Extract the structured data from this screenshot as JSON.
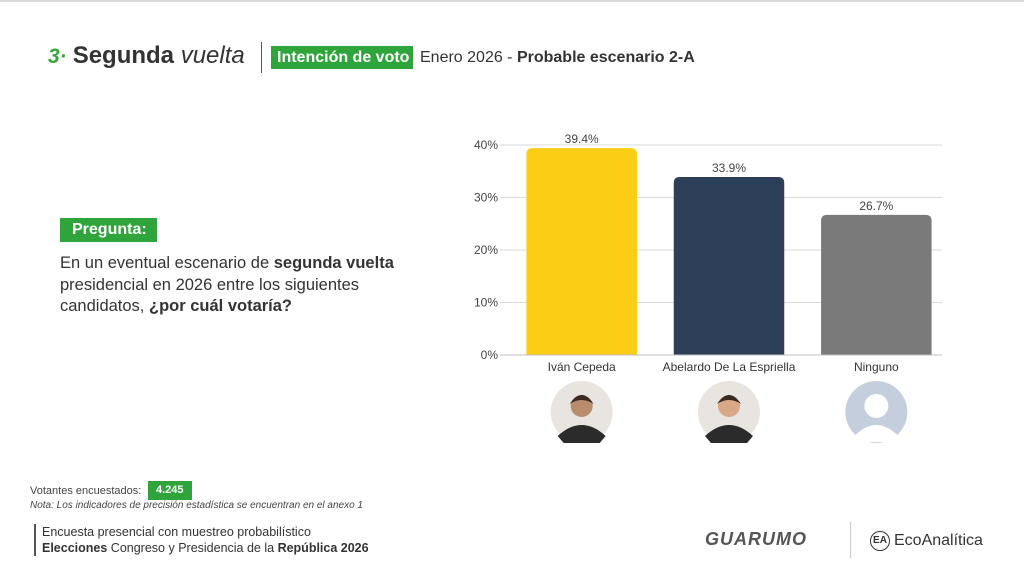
{
  "header": {
    "number": "3·",
    "title_bold": "Segunda",
    "title_italic": "vuelta",
    "tag": "Intención de voto",
    "subtitle_date": "Enero 2026 - ",
    "subtitle_scenario": "Probable escenario 2-A"
  },
  "question": {
    "label": "Pregunta:",
    "parts": [
      "En un eventual escenario de ",
      "segunda vuelta",
      " presidencial en 2026 entre los siguientes candidatos, ",
      "¿por cuál votaría?"
    ]
  },
  "sample": {
    "label": "Votantes encuestados:",
    "value": "4.245",
    "note": "Nota: Los indicadores de precisión estadística se encuentran en el anexo 1"
  },
  "footer": {
    "line1": "Encuesta presencial con muestreo probabilístico",
    "line2_parts": [
      "Elecciones",
      " Congreso y Presidencia de la ",
      "República 2026"
    ]
  },
  "logos": [
    "GUARUMO",
    "EcoAnalítica"
  ],
  "chart_data": {
    "type": "bar",
    "categories": [
      "Iván Cepeda",
      "Abelardo De La Espriella",
      "Ninguno"
    ],
    "values": [
      39.4,
      33.9,
      26.7
    ],
    "value_labels": [
      "39.4%",
      "33.9%",
      "26.7%"
    ],
    "colors": [
      "#fbcd14",
      "#2d3e58",
      "#7a7a7a"
    ],
    "ylim": [
      0,
      40
    ],
    "yticks": [
      {
        "value": 0,
        "label": "0%"
      },
      {
        "value": 10,
        "label": "10%"
      },
      {
        "value": 20,
        "label": "20%"
      },
      {
        "value": 30,
        "label": "30%"
      },
      {
        "value": 40,
        "label": "40%"
      }
    ],
    "grid": true
  }
}
